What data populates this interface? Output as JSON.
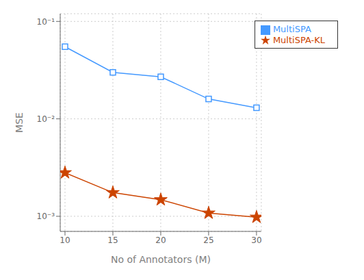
{
  "chart_data": {
    "type": "line",
    "x": [
      10,
      15,
      20,
      25,
      30
    ],
    "series": [
      {
        "name": "MultiSPA",
        "color": "#4499FF",
        "marker": "square",
        "values": [
          0.055,
          0.03,
          0.027,
          0.016,
          0.013
        ]
      },
      {
        "name": "MultiSPA-KL",
        "color": "#CC4400",
        "marker": "star",
        "values": [
          0.0028,
          0.00175,
          0.00148,
          0.00108,
          0.00098
        ]
      }
    ],
    "x_label": "No of Annotators (M)",
    "y_label": "MSE",
    "xlim": [
      9.5,
      30.5
    ],
    "xticks": [
      10,
      15,
      20,
      25,
      30
    ],
    "ylim": [
      0.0007,
      0.12
    ],
    "yticks": [
      {
        "value": 0.001,
        "label": "10⁻³"
      },
      {
        "value": 0.01,
        "label": "10⁻²"
      },
      {
        "value": 0.1,
        "label": "10⁻¹"
      }
    ],
    "log": "y",
    "grid": true,
    "legend": "upper right"
  }
}
